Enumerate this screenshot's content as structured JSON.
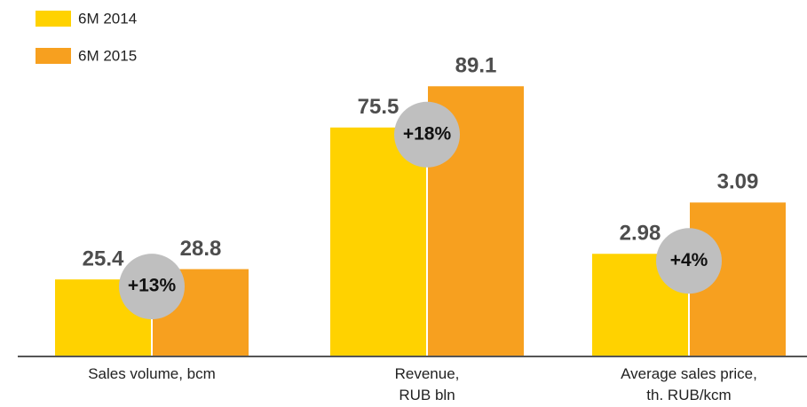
{
  "chart_data": [
    {
      "type": "bar",
      "categories": [
        "Sales volume, bcm"
      ],
      "legend": true,
      "series": [
        {
          "name": "6M 2014",
          "color": "#ffd200",
          "values": [
            25.4
          ]
        },
        {
          "name": "6M 2015",
          "color": "#f7a01f",
          "values": [
            28.8
          ]
        }
      ],
      "annotation": "+13%",
      "ylim": [
        0,
        100
      ]
    },
    {
      "type": "bar",
      "categories": [
        "Revenue,\nRUB bln"
      ],
      "series": [
        {
          "name": "6M 2014",
          "color": "#ffd200",
          "values": [
            75.5
          ]
        },
        {
          "name": "6M 2015",
          "color": "#f7a01f",
          "values": [
            89.1
          ]
        }
      ],
      "annotation": "+18%",
      "ylim": [
        0,
        100
      ]
    },
    {
      "type": "bar",
      "categories": [
        "Average sales price,\nth. RUB/kcm"
      ],
      "series": [
        {
          "name": "6M 2014",
          "color": "#ffd200",
          "values": [
            2.98
          ]
        },
        {
          "name": "6M 2015",
          "color": "#f7a01f",
          "values": [
            3.09
          ]
        }
      ],
      "annotation": "+4%",
      "ylim": [
        2.76,
        3.41
      ]
    }
  ]
}
